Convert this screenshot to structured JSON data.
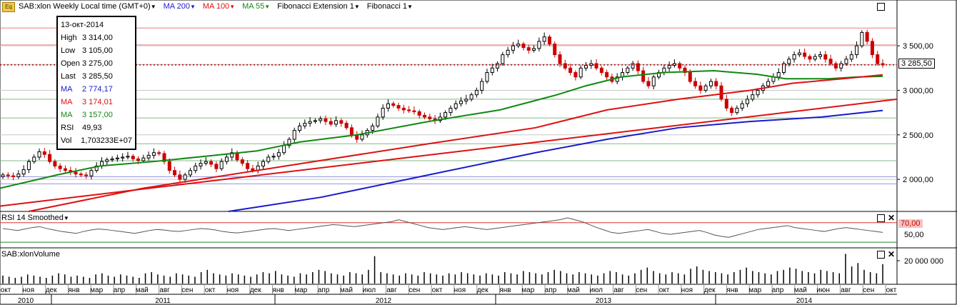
{
  "header": {
    "symbol": "SAB:xlon Weekly Local time (GMT+0)",
    "ma200": "MA 200",
    "ma100": "MA 100",
    "ma55": "MA 55",
    "fib_ext": "Fibonacci Extension 1",
    "fib": "Fibonacci 1",
    "icon_text": "Eq"
  },
  "colors": {
    "up_candle": "#000000",
    "down_candle": "#cc0000",
    "ma200": "#1a1acc",
    "ma100": "#dd1111",
    "ma55": "#118811",
    "fib_ext": "#dd1111",
    "price_line": "#cc0000",
    "grid": "#c8c8c8"
  },
  "tooltip": {
    "date": "13-окт-2014",
    "rows": [
      {
        "k": "High",
        "v": "3 314,00",
        "color": "#000000"
      },
      {
        "k": "Low",
        "v": "3 105,00",
        "color": "#000000"
      },
      {
        "k": "Open",
        "v": "3 275,00",
        "color": "#000000"
      },
      {
        "k": "Last",
        "v": "3 285,50",
        "color": "#000000"
      },
      {
        "k": "MA",
        "v": "2 774,17",
        "color": "#1a1acc"
      },
      {
        "k": "MA",
        "v": "3 174,01",
        "color": "#dd1111"
      },
      {
        "k": "MA",
        "v": "3 157,00",
        "color": "#118811"
      },
      {
        "k": "RSI",
        "v": "49,93",
        "color": "#000000"
      },
      {
        "k": "Vol",
        "v": "1,703233E+07",
        "color": "#000000"
      }
    ]
  },
  "price_box": "3 285,50",
  "rsi_panel": {
    "title": "RSI 14 Smoothed",
    "level_label": "70,00",
    "tick": "50,00"
  },
  "volume_panel": {
    "title": "SAB:xlonVolume",
    "tick": "20 000 000"
  },
  "chart_data": [
    {
      "type": "candlestick",
      "title": "SAB:xlon Weekly Local time (GMT+0)",
      "ylim": [
        1640,
        3870
      ],
      "y_ticks": [
        "2 000,00",
        "2 500,00",
        "3 000,00",
        "3 500,00"
      ],
      "y_tick_values": [
        2000,
        2500,
        3000,
        3500
      ],
      "last_price": 3285.5,
      "x_month_labels": [
        "окт",
        "ноя",
        "дек",
        "янв",
        "мар",
        "апр",
        "май",
        "авг",
        "сен",
        "окт",
        "ноя",
        "дек",
        "янв",
        "мар",
        "апр",
        "май",
        "июл",
        "авг",
        "сен",
        "окт",
        "ноя",
        "дек",
        "янв",
        "мар",
        "апр",
        "май",
        "июл",
        "авг",
        "сен",
        "окт",
        "ноя",
        "дек",
        "янв",
        "мар",
        "апр",
        "май",
        "июн",
        "авг",
        "сен",
        "окт"
      ],
      "x_year_labels": [
        "2010",
        "2011",
        "2012",
        "2013",
        "2014"
      ],
      "fib_levels": [
        3700,
        3510,
        3290,
        2900,
        2690,
        2400,
        2210,
        2030,
        1950
      ],
      "close_series_approx": [
        2050,
        2040,
        2030,
        2060,
        2110,
        2200,
        2250,
        2310,
        2280,
        2200,
        2150,
        2120,
        2100,
        2080,
        2060,
        2050,
        2040,
        2100,
        2150,
        2200,
        2220,
        2230,
        2240,
        2250,
        2260,
        2230,
        2210,
        2240,
        2270,
        2300,
        2290,
        2200,
        2100,
        2050,
        2000,
        2050,
        2100,
        2150,
        2180,
        2200,
        2170,
        2120,
        2200,
        2250,
        2300,
        2220,
        2180,
        2120,
        2100,
        2150,
        2200,
        2250,
        2260,
        2300,
        2380,
        2450,
        2550,
        2600,
        2630,
        2650,
        2660,
        2680,
        2650,
        2620,
        2660,
        2630,
        2580,
        2500,
        2450,
        2500,
        2550,
        2600,
        2700,
        2800,
        2850,
        2830,
        2800,
        2780,
        2770,
        2760,
        2720,
        2700,
        2680,
        2660,
        2700,
        2750,
        2800,
        2850,
        2880,
        2900,
        2950,
        3000,
        3100,
        3200,
        3250,
        3300,
        3400,
        3450,
        3500,
        3520,
        3480,
        3450,
        3470,
        3550,
        3600,
        3520,
        3400,
        3300,
        3250,
        3200,
        3150,
        3250,
        3280,
        3300,
        3250,
        3200,
        3150,
        3100,
        3150,
        3200,
        3250,
        3300,
        3220,
        3100,
        3050,
        3150,
        3200,
        3250,
        3280,
        3300,
        3250,
        3200,
        3100,
        3050,
        3000,
        3050,
        3100,
        3050,
        2900,
        2800,
        2750,
        2800,
        2850,
        2900,
        2950,
        3000,
        3050,
        3100,
        3150,
        3200,
        3300,
        3350,
        3400,
        3420,
        3380,
        3350,
        3380,
        3400,
        3350,
        3300,
        3250,
        3300,
        3350,
        3400,
        3500,
        3650,
        3550,
        3400,
        3300,
        3285.5
      ],
      "series": [
        {
          "name": "MA 55",
          "points": [
            [
              0,
              1900
            ],
            [
              80,
              2050
            ],
            [
              140,
              2150
            ],
            [
              215,
              2200
            ],
            [
              300,
              2270
            ],
            [
              360,
              2320
            ],
            [
              420,
              2420
            ],
            [
              500,
              2500
            ],
            [
              600,
              2650
            ],
            [
              700,
              2780
            ],
            [
              780,
              2950
            ],
            [
              820,
              3050
            ],
            [
              870,
              3150
            ],
            [
              930,
              3200
            ],
            [
              1000,
              3220
            ],
            [
              1060,
              3180
            ],
            [
              1100,
              3130
            ],
            [
              1160,
              3130
            ],
            [
              1200,
              3150
            ],
            [
              1236,
              3157
            ]
          ]
        },
        {
          "name": "MA 100",
          "points": [
            [
              40,
              1640
            ],
            [
              200,
              1900
            ],
            [
              400,
              2150
            ],
            [
              600,
              2400
            ],
            [
              750,
              2580
            ],
            [
              850,
              2780
            ],
            [
              950,
              2900
            ],
            [
              1050,
              3000
            ],
            [
              1110,
              3080
            ],
            [
              1180,
              3130
            ],
            [
              1236,
              3174
            ]
          ]
        },
        {
          "name": "MA 200",
          "points": [
            [
              320,
              1640
            ],
            [
              450,
              1800
            ],
            [
              600,
              2050
            ],
            [
              750,
              2300
            ],
            [
              850,
              2450
            ],
            [
              950,
              2580
            ],
            [
              1050,
              2650
            ],
            [
              1150,
              2700
            ],
            [
              1236,
              2774
            ]
          ]
        }
      ]
    },
    {
      "type": "line",
      "title": "RSI 14 Smoothed",
      "ylim": [
        20,
        90
      ],
      "levels": [
        70,
        50
      ],
      "values_approx": [
        58,
        56,
        54,
        57,
        60,
        62,
        58,
        55,
        52,
        50,
        48,
        52,
        55,
        57,
        56,
        54,
        52,
        50,
        48,
        51,
        54,
        56,
        55,
        53,
        52,
        54,
        56,
        58,
        57,
        55,
        52,
        50,
        49,
        51,
        53,
        55,
        57,
        58,
        56,
        54,
        56,
        58,
        60,
        62,
        64,
        66,
        65,
        63,
        62,
        64,
        66,
        68,
        70,
        72,
        76,
        72,
        68,
        64,
        60,
        58,
        56,
        58,
        60,
        62,
        60,
        58,
        56,
        58,
        60,
        62,
        64,
        66,
        68,
        70,
        72,
        74,
        76,
        80,
        76,
        72,
        66,
        60,
        55,
        50,
        48,
        50,
        52,
        54,
        56,
        52,
        48,
        46,
        48,
        50,
        52,
        54,
        50,
        45,
        42,
        40,
        44,
        48,
        52,
        56,
        58,
        60,
        62,
        64,
        60,
        58,
        56,
        54,
        52,
        55,
        58,
        60,
        58,
        56,
        54,
        52,
        50
      ]
    },
    {
      "type": "bar",
      "title": "SAB:xlonVolume",
      "ylim": [
        0,
        30000000
      ],
      "values_approx": [
        7,
        6,
        5,
        6,
        8,
        7,
        6,
        5,
        7,
        9,
        8,
        6,
        7,
        6,
        5,
        8,
        9,
        7,
        6,
        8,
        7,
        6,
        5,
        9,
        10,
        8,
        7,
        6,
        9,
        8,
        7,
        6,
        10,
        12,
        9,
        8,
        7,
        9,
        8,
        7,
        6,
        8,
        10,
        9,
        11,
        8,
        7,
        6,
        9,
        8,
        10,
        12,
        11,
        9,
        8,
        7,
        10,
        9,
        8,
        12,
        24,
        10,
        9,
        8,
        7,
        9,
        8,
        7,
        10,
        9,
        8,
        7,
        9,
        8,
        10,
        9,
        8,
        7,
        9,
        8,
        7,
        10,
        9,
        8,
        11,
        10,
        9,
        8,
        10,
        12,
        11,
        9,
        8,
        10,
        9,
        8,
        7,
        9,
        11,
        10,
        8,
        7,
        9,
        12,
        14,
        11,
        9,
        8,
        10,
        9,
        8,
        13,
        15,
        12,
        11,
        10,
        9,
        8,
        10,
        12,
        14,
        11,
        10,
        9,
        8,
        11,
        12,
        14,
        13,
        11,
        10,
        9,
        12,
        11,
        10,
        9,
        26,
        15,
        18,
        12,
        10,
        9,
        17
      ]
    }
  ]
}
